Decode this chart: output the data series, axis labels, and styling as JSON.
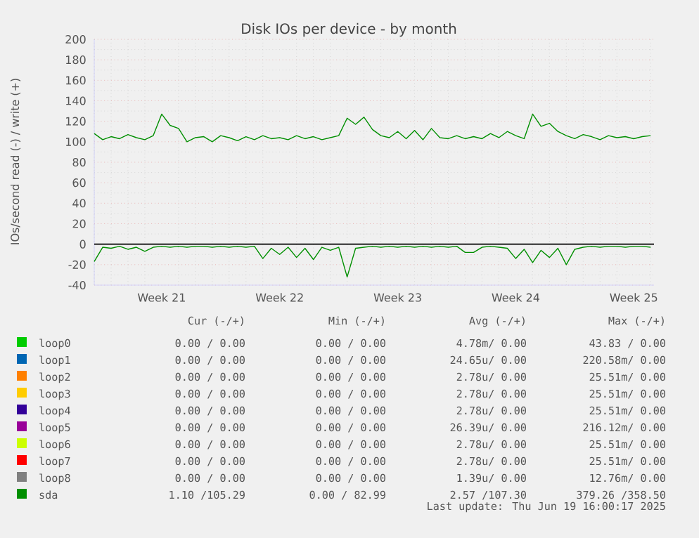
{
  "chart_data": {
    "type": "line",
    "title": "Disk IOs per device - by month",
    "ylabel": "IOs/second read (-) / write (+)",
    "categories": [
      null,
      null,
      null,
      null,
      null,
      null,
      null,
      null,
      "Week 21",
      null,
      null,
      null,
      null,
      null,
      null,
      null,
      null,
      null,
      null,
      null,
      null,
      null,
      "Week 22",
      null,
      null,
      null,
      null,
      null,
      null,
      null,
      null,
      null,
      null,
      null,
      null,
      null,
      "Week 23",
      null,
      null,
      null,
      null,
      null,
      null,
      null,
      null,
      null,
      null,
      null,
      null,
      null,
      "Week 24",
      null,
      null,
      null,
      null,
      null,
      null,
      null,
      null,
      null,
      null,
      null,
      null,
      null,
      "Week 25",
      null,
      null
    ],
    "ylim": [
      -40,
      200
    ],
    "yticks": [
      -40,
      -20,
      0,
      20,
      40,
      60,
      80,
      100,
      120,
      140,
      160,
      180,
      200
    ],
    "grid": true,
    "legend": "bottom",
    "marker": "none",
    "line_style": "solid",
    "ref_lines": [
      {
        "axis": "y",
        "value": 0,
        "color": "#000000"
      }
    ],
    "series": [
      {
        "name": "sda",
        "color": "#008f00",
        "values": [
          108,
          102,
          105,
          103,
          107,
          104,
          102,
          106,
          127,
          116,
          113,
          100,
          104,
          105,
          100,
          106,
          104,
          101,
          105,
          102,
          106,
          103,
          104,
          102,
          106,
          103,
          105,
          102,
          104,
          106,
          123,
          117,
          124,
          112,
          106,
          104,
          110,
          103,
          111,
          102,
          113,
          104,
          103,
          106,
          103,
          105,
          103,
          108,
          104,
          110,
          106,
          103,
          127,
          115,
          118,
          110,
          106,
          103,
          107,
          105,
          102,
          106,
          104,
          105,
          103,
          105,
          106
        ]
      },
      {
        "color": "#008f00",
        "values": [
          -17,
          -3,
          -4,
          -2,
          -5,
          -3,
          -7,
          -3,
          -2,
          -3,
          -2,
          -3,
          -2,
          -2,
          -3,
          -2,
          -3,
          -2,
          -3,
          -2,
          -14,
          -4,
          -10,
          -3,
          -13,
          -4,
          -15,
          -3,
          -6,
          -3,
          -32,
          -4,
          -3,
          -2,
          -3,
          -2,
          -3,
          -2,
          -3,
          -2,
          -3,
          -2,
          -3,
          -2,
          -8,
          -8,
          -3,
          -2,
          -3,
          -4,
          -14,
          -5,
          -18,
          -6,
          -13,
          -4,
          -20,
          -5,
          -3,
          -2,
          -3,
          -2,
          -2,
          -3,
          -2,
          -2,
          -3
        ]
      },
      {
        "name": "loop0",
        "color": "#00cc00",
        "values": [
          null,
          null,
          null,
          null,
          null,
          null,
          null,
          null,
          null,
          null,
          null,
          null,
          null,
          null,
          null,
          null,
          null,
          null,
          null,
          null,
          null,
          null,
          null,
          null,
          null,
          null,
          null,
          null,
          null,
          null,
          null,
          null,
          null,
          null,
          null,
          null,
          null,
          null,
          null,
          null,
          null,
          null,
          null,
          null,
          null,
          null,
          null,
          null,
          null,
          null,
          null,
          null,
          null,
          null,
          null,
          null,
          null,
          null,
          null,
          null,
          null,
          null,
          null,
          null,
          null,
          null,
          null
        ]
      },
      {
        "name": "loop1",
        "color": "#0066b3",
        "values": [
          null,
          null,
          null,
          null,
          null,
          null,
          null,
          null,
          null,
          null,
          null,
          null,
          null,
          null,
          null,
          null,
          null,
          null,
          null,
          null,
          null,
          null,
          null,
          null,
          null,
          null,
          null,
          null,
          null,
          null,
          null,
          null,
          null,
          null,
          null,
          null,
          null,
          null,
          null,
          null,
          null,
          null,
          null,
          null,
          null,
          null,
          null,
          null,
          null,
          null,
          null,
          null,
          null,
          null,
          null,
          null,
          null,
          null,
          null,
          null,
          null,
          null,
          null,
          null,
          null,
          null,
          null
        ]
      },
      {
        "name": "loop2",
        "color": "#ff8000",
        "values": [
          null,
          null,
          null,
          null,
          null,
          null,
          null,
          null,
          null,
          null,
          null,
          null,
          null,
          null,
          null,
          null,
          null,
          null,
          null,
          null,
          null,
          null,
          null,
          null,
          null,
          null,
          null,
          null,
          null,
          null,
          null,
          null,
          null,
          null,
          null,
          null,
          null,
          null,
          null,
          null,
          null,
          null,
          null,
          null,
          null,
          null,
          null,
          null,
          null,
          null,
          null,
          null,
          null,
          null,
          null,
          null,
          null,
          null,
          null,
          null,
          null,
          null,
          null,
          null,
          null,
          null,
          null
        ]
      },
      {
        "name": "loop3",
        "color": "#ffcc00",
        "values": [
          null,
          null,
          null,
          null,
          null,
          null,
          null,
          null,
          null,
          null,
          null,
          null,
          null,
          null,
          null,
          null,
          null,
          null,
          null,
          null,
          null,
          null,
          null,
          null,
          null,
          null,
          null,
          null,
          null,
          null,
          null,
          null,
          null,
          null,
          null,
          null,
          null,
          null,
          null,
          null,
          null,
          null,
          null,
          null,
          null,
          null,
          null,
          null,
          null,
          null,
          null,
          null,
          null,
          null,
          null,
          null,
          null,
          null,
          null,
          null,
          null,
          null,
          null,
          null,
          null,
          null,
          null
        ]
      },
      {
        "name": "loop4",
        "color": "#330099",
        "values": [
          null,
          null,
          null,
          null,
          null,
          null,
          null,
          null,
          null,
          null,
          null,
          null,
          null,
          null,
          null,
          null,
          null,
          null,
          null,
          null,
          null,
          null,
          null,
          null,
          null,
          null,
          null,
          null,
          null,
          null,
          null,
          null,
          null,
          null,
          null,
          null,
          null,
          null,
          null,
          null,
          null,
          null,
          null,
          null,
          null,
          null,
          null,
          null,
          null,
          null,
          null,
          null,
          null,
          null,
          null,
          null,
          null,
          null,
          null,
          null,
          null,
          null,
          null,
          null,
          null,
          null,
          null
        ]
      },
      {
        "name": "loop5",
        "color": "#990099",
        "values": [
          null,
          null,
          null,
          null,
          null,
          null,
          null,
          null,
          null,
          null,
          null,
          null,
          null,
          null,
          null,
          null,
          null,
          null,
          null,
          null,
          null,
          null,
          null,
          null,
          null,
          null,
          null,
          null,
          null,
          null,
          null,
          null,
          null,
          null,
          null,
          null,
          null,
          null,
          null,
          null,
          null,
          null,
          null,
          null,
          null,
          null,
          null,
          null,
          null,
          null,
          null,
          null,
          null,
          null,
          null,
          null,
          null,
          null,
          null,
          null,
          null,
          null,
          null,
          null,
          null,
          null,
          null
        ]
      },
      {
        "name": "loop6",
        "color": "#ccff00",
        "values": [
          null,
          null,
          null,
          null,
          null,
          null,
          null,
          null,
          null,
          null,
          null,
          null,
          null,
          null,
          null,
          null,
          null,
          null,
          null,
          null,
          null,
          null,
          null,
          null,
          null,
          null,
          null,
          null,
          null,
          null,
          null,
          null,
          null,
          null,
          null,
          null,
          null,
          null,
          null,
          null,
          null,
          null,
          null,
          null,
          null,
          null,
          null,
          null,
          null,
          null,
          null,
          null,
          null,
          null,
          null,
          null,
          null,
          null,
          null,
          null,
          null,
          null,
          null,
          null,
          null,
          null,
          null
        ]
      },
      {
        "name": "loop7",
        "color": "#ff0000",
        "values": [
          null,
          null,
          null,
          null,
          null,
          null,
          null,
          null,
          null,
          null,
          null,
          null,
          null,
          null,
          null,
          null,
          null,
          null,
          null,
          null,
          null,
          null,
          null,
          null,
          null,
          null,
          null,
          null,
          null,
          null,
          null,
          null,
          null,
          null,
          null,
          null,
          null,
          null,
          null,
          null,
          null,
          null,
          null,
          null,
          null,
          null,
          null,
          null,
          null,
          null,
          null,
          null,
          null,
          null,
          null,
          null,
          null,
          null,
          null,
          null,
          null,
          null,
          null,
          null,
          null,
          null,
          null
        ]
      },
      {
        "name": "loop8",
        "color": "#808080",
        "values": [
          null,
          null,
          null,
          null,
          null,
          null,
          null,
          null,
          null,
          null,
          null,
          null,
          null,
          null,
          null,
          null,
          null,
          null,
          null,
          null,
          null,
          null,
          null,
          null,
          null,
          null,
          null,
          null,
          null,
          null,
          null,
          null,
          null,
          null,
          null,
          null,
          null,
          null,
          null,
          null,
          null,
          null,
          null,
          null,
          null,
          null,
          null,
          null,
          null,
          null,
          null,
          null,
          null,
          null,
          null,
          null,
          null,
          null,
          null,
          null,
          null,
          null,
          null,
          null,
          null,
          null,
          null
        ]
      }
    ],
    "annotations": [
      "Cur (-/+)",
      "Min (-/+)",
      "Avg (-/+)",
      "Max (-/+)",
      "1.10 /105.29",
      "0.00 / 82.99",
      "2.57 /107.30",
      "379.26 /358.50",
      "0.00 / 0.00",
      "0.00 / 0.00",
      "4.78m/ 0.00",
      "43.83 / 0.00",
      "0.00 / 0.00",
      "0.00 / 0.00",
      "24.65u/ 0.00",
      "220.58m/ 0.00",
      "0.00 / 0.00",
      "0.00 / 0.00",
      "2.78u/ 0.00",
      "25.51m/ 0.00",
      "0.00 / 0.00",
      "0.00 / 0.00",
      "2.78u/ 0.00",
      "25.51m/ 0.00",
      "0.00 / 0.00",
      "0.00 / 0.00",
      "2.78u/ 0.00",
      "25.51m/ 0.00",
      "0.00 / 0.00",
      "0.00 / 0.00",
      "26.39u/ 0.00",
      "216.12m/ 0.00",
      "0.00 / 0.00",
      "0.00 / 0.00",
      "2.78u/ 0.00",
      "25.51m/ 0.00",
      "0.00 / 0.00",
      "0.00 / 0.00",
      "2.78u/ 0.00",
      "25.51m/ 0.00",
      "0.00 / 0.00",
      "0.00 / 0.00",
      "1.39u/ 0.00",
      "12.76m/ 0.00",
      "Last update: Thu Jun 19 16:00:17 2025"
    ]
  }
}
